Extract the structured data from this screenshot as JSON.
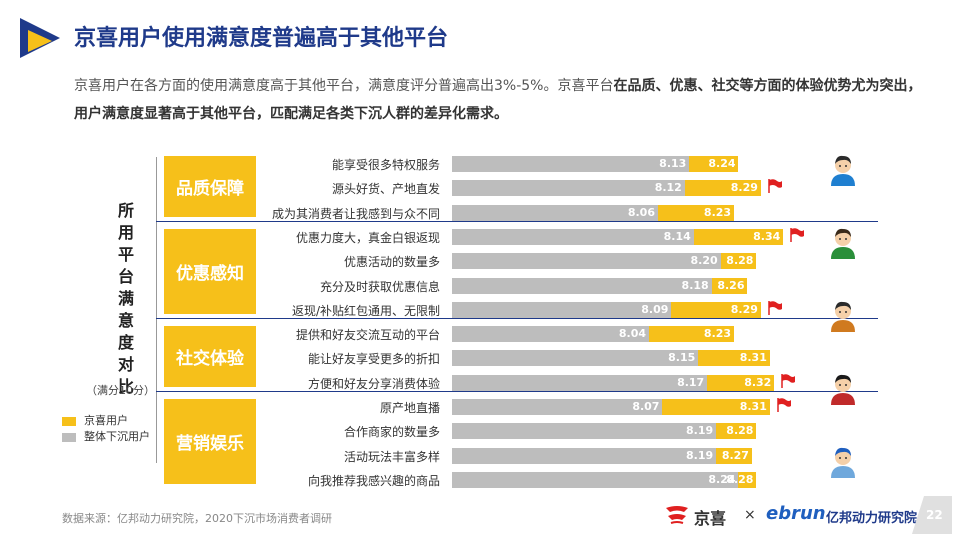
{
  "header": {
    "title": "京喜用户使用满意度普遍高于其他平台",
    "desc_normal": "京喜用户在各方面的使用满意度高于其他平台，满意度评分普遍高出3%-5%。京喜平台",
    "desc_bold": "在品质、优惠、社交等方面的体验优势尤为突出，用户满意度显著高于其他平台，匹配满足各类下沉人群的差异化需求。"
  },
  "side": {
    "vertical_label": "所用平台满意度对比",
    "note": "（满分10分）"
  },
  "legend": [
    {
      "label": "京喜用户",
      "color": "#f6c01a"
    },
    {
      "label": "整体下沉用户",
      "color": "#bdbdbd"
    }
  ],
  "chart_data": {
    "type": "bar",
    "xlim": [
      7.6,
      8.4
    ],
    "groups": [
      {
        "name": "品质保障",
        "rows": [
          0,
          1,
          2
        ]
      },
      {
        "name": "优惠感知",
        "rows": [
          3,
          4,
          5,
          6
        ]
      },
      {
        "name": "社交体验",
        "rows": [
          7,
          8,
          9
        ]
      },
      {
        "name": "营销娱乐",
        "rows": [
          10,
          11,
          12,
          13
        ]
      }
    ],
    "categories": [
      "能享受很多特权服务",
      "源头好货、产地直发",
      "成为其消费者让我感到与众不同",
      "优惠力度大，真金白银返现",
      "优惠活动的数量多",
      "充分及时获取优惠信息",
      "返现/补贴红包通用、无限制",
      "提供和好友交流互动的平台",
      "能让好友享受更多的折扣",
      "方便和好友分享消费体验",
      "原产地直播",
      "合作商家的数量多",
      "活动玩法丰富多样",
      "向我推荐我感兴趣的商品"
    ],
    "series": [
      {
        "name": "整体下沉用户",
        "values": [
          8.13,
          8.12,
          8.06,
          8.14,
          8.2,
          8.18,
          8.09,
          8.04,
          8.15,
          8.17,
          8.07,
          8.19,
          8.19,
          8.24
        ]
      },
      {
        "name": "京喜用户",
        "values": [
          8.24,
          8.29,
          8.23,
          8.34,
          8.28,
          8.26,
          8.29,
          8.23,
          8.31,
          8.32,
          8.31,
          8.28,
          8.27,
          8.28
        ]
      }
    ],
    "flag_rows": [
      1,
      3,
      6,
      9,
      10
    ],
    "avatar_rows": [
      0,
      3,
      6,
      9,
      12
    ]
  },
  "footer": {
    "source": "数据来源：亿邦动力研究院，2020下沉市场消费者调研",
    "brand1": "京喜",
    "brand_x": "×",
    "brand2": "ebrun",
    "brand3": "亿邦动力研究院",
    "page": "22"
  },
  "colors": {
    "accent": "#f6c01a",
    "gray": "#bdbdbd",
    "title": "#1f3a8a",
    "flag": "#e02020"
  }
}
